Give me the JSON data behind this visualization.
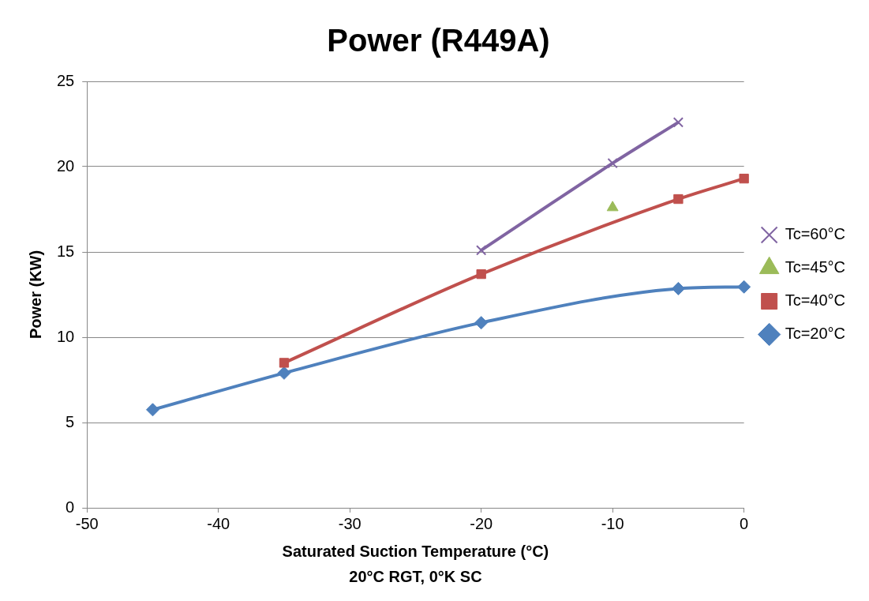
{
  "chart_data": {
    "type": "line",
    "title": "Power (R449A)",
    "xlabel": "Saturated Suction Temperature (°C)",
    "ylabel": "Power (KW)",
    "annotations": [
      "20°C RGT, 0°K SC"
    ],
    "xlim": [
      -50,
      0
    ],
    "xticks": [
      -50,
      -40,
      -30,
      -20,
      -10,
      0
    ],
    "ylim": [
      0,
      25
    ],
    "yticks": [
      0,
      5,
      10,
      15,
      20,
      25
    ],
    "grid": "y",
    "legend": "right",
    "series": [
      {
        "name": "Tc=60°C",
        "color": "#8064a2",
        "marker": "cross",
        "x": [
          -20,
          -10,
          -5
        ],
        "values": [
          15.1,
          20.2,
          22.6
        ]
      },
      {
        "name": "Tc=45°C",
        "color": "#9bbb59",
        "marker": "triangle",
        "type": "scatter",
        "x": [
          -10
        ],
        "values": [
          17.6
        ]
      },
      {
        "name": "Tc=40°C",
        "color": "#c0504d",
        "marker": "square",
        "x": [
          -35,
          -20,
          -5,
          0
        ],
        "values": [
          8.5,
          13.7,
          18.1,
          19.3
        ]
      },
      {
        "name": "Tc=20°C",
        "color": "#4f81bd",
        "marker": "diamond",
        "x": [
          -45,
          -35,
          -20,
          -5,
          0
        ],
        "values": [
          5.75,
          7.9,
          10.85,
          12.85,
          12.95
        ]
      }
    ]
  }
}
